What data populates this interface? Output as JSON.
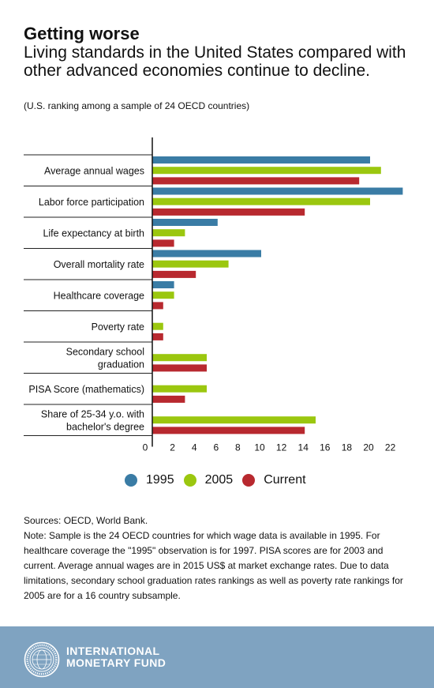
{
  "header": {
    "title": "Getting worse",
    "subtitle": "Living standards in the United States compared with other advanced economies continue to decline.",
    "note": "(U.S. ranking among a sample of 24 OECD countries)"
  },
  "chart_data": {
    "type": "bar",
    "orientation": "horizontal",
    "categories": [
      "Average annual wages",
      "Labor force participation",
      "Life expectancy at birth",
      "Overall mortality rate",
      "Healthcare coverage",
      "Poverty rate",
      "Secondary school graduation",
      "PISA Score (mathematics)",
      "Share of 25-34 y.o. with bachelor's degree"
    ],
    "category_lines": [
      [
        "Average annual wages"
      ],
      [
        "Labor force participation"
      ],
      [
        "Life expectancy at birth"
      ],
      [
        "Overall mortality rate"
      ],
      [
        "Healthcare coverage"
      ],
      [
        "Poverty rate"
      ],
      [
        "Secondary school",
        "graduation"
      ],
      [
        "PISA Score (mathematics)"
      ],
      [
        "Share of 25-34 y.o. with",
        "bachelor's degree"
      ]
    ],
    "series": [
      {
        "name": "1995",
        "color": "#3a7ca5",
        "values": [
          20,
          23,
          6,
          10,
          2,
          null,
          null,
          null,
          null
        ]
      },
      {
        "name": "2005",
        "color": "#9bc70f",
        "values": [
          21,
          20,
          3,
          7,
          2,
          1,
          5,
          5,
          15
        ]
      },
      {
        "name": "Current",
        "color": "#b8292f",
        "values": [
          19,
          14,
          2,
          4,
          1,
          1,
          5,
          3,
          14
        ]
      }
    ],
    "xlim": [
      0,
      23
    ],
    "xticks": [
      0,
      2,
      4,
      6,
      8,
      10,
      12,
      14,
      16,
      18,
      20,
      22
    ],
    "legend_position": "bottom"
  },
  "sources": "Sources: OECD, World Bank.",
  "note": "Note: Sample is the 24 OECD countries for which wage data is available in 1995. For healthcare coverage the \"1995\" observation is for 1997. PISA scores are for 2003 and current. Average annual wages are in 2015 US$ at market exchange rates. Due to data limitations, secondary school graduation rates rankings as well as poverty rate rankings for 2005 are for a 16 country subsample.",
  "footer": {
    "org_line1": "INTERNATIONAL",
    "org_line2": "MONETARY FUND",
    "logo_icon": "imf-seal-icon",
    "background": "#7fa3c1"
  }
}
